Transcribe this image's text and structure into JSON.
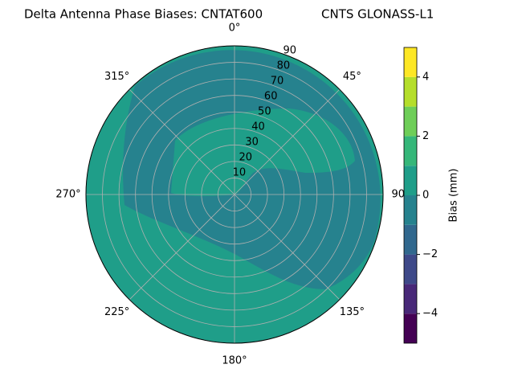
{
  "chart_data": {
    "type": "polar-contour",
    "title": "Delta Antenna Phase Biases: CNTAT600",
    "subtitle": "CNTS GLONASS-L1",
    "rlim": [
      0,
      90
    ],
    "rticks": [
      10,
      20,
      30,
      40,
      50,
      60,
      70,
      80,
      90
    ],
    "thetaticks": [
      {
        "value": 0,
        "label": "0°"
      },
      {
        "value": 45,
        "label": "45°"
      },
      {
        "value": 90,
        "label": "90°"
      },
      {
        "value": 135,
        "label": "135°"
      },
      {
        "value": 180,
        "label": "180°"
      },
      {
        "value": 225,
        "label": "225°"
      },
      {
        "value": 270,
        "label": "270°"
      },
      {
        "value": 315,
        "label": "315°"
      }
    ],
    "regions": [
      {
        "min": 0,
        "max": 1
      },
      {
        "min": -1,
        "max": 0
      },
      {
        "min": 0,
        "max": 1
      }
    ],
    "colorbar": {
      "label": "Bias (mm)",
      "levels": [
        -5,
        -4,
        -3,
        -2,
        -1,
        0,
        1,
        2,
        3,
        4,
        5
      ],
      "colors": [
        "#440154",
        "#482878",
        "#3e4989",
        "#31688e",
        "#26828e",
        "#1f9e89",
        "#35b779",
        "#6ece58",
        "#b5de2b",
        "#fde725"
      ],
      "lim": [
        -5,
        5
      ],
      "ticks": [
        {
          "value": -4,
          "label": "−4"
        },
        {
          "value": -2,
          "label": "−2"
        },
        0,
        2,
        4
      ]
    },
    "grid": true
  }
}
